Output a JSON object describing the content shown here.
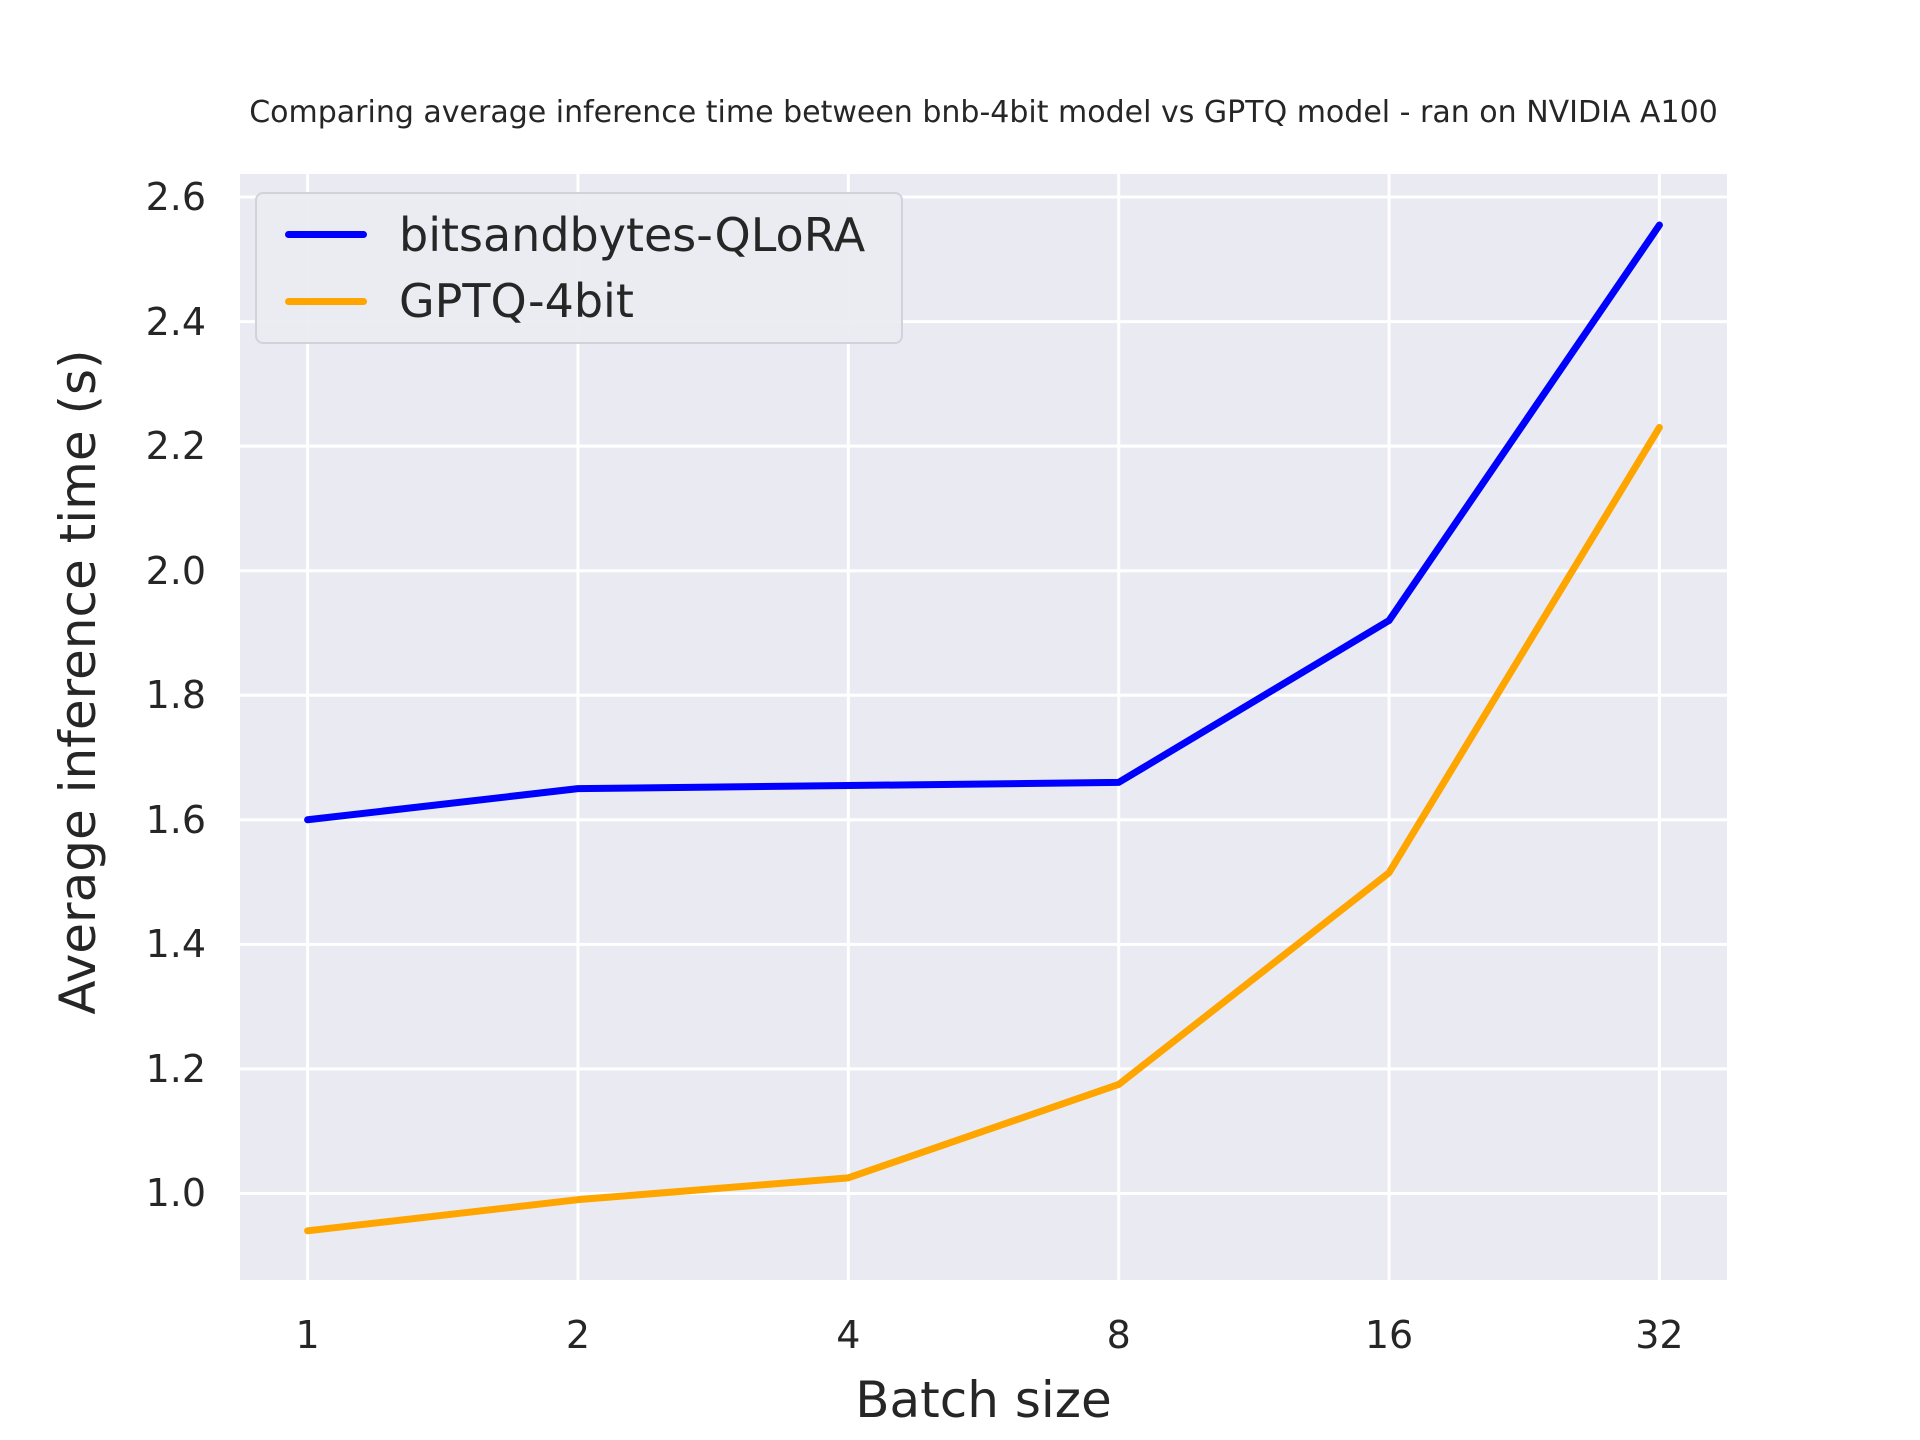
{
  "chart_data": {
    "type": "line",
    "title": "Comparing average inference time between bnb-4bit model vs GPTQ model - ran on NVIDIA A100",
    "xlabel": "Batch size",
    "ylabel": "Average inference time (s)",
    "categories": [
      "1",
      "2",
      "4",
      "8",
      "16",
      "32"
    ],
    "x_scale": "categorical-log2-spacing",
    "series": [
      {
        "name": "bitsandbytes-QLoRA",
        "color": "#0000ff",
        "values": [
          1.6,
          1.65,
          1.655,
          1.66,
          1.92,
          2.555
        ]
      },
      {
        "name": "GPTQ-4bit",
        "color": "#ffa500",
        "values": [
          0.94,
          0.99,
          1.025,
          1.175,
          1.515,
          2.23
        ]
      }
    ],
    "y_ticks": [
      1.0,
      1.2,
      1.4,
      1.6,
      1.8,
      2.0,
      2.2,
      2.4,
      2.6
    ],
    "ylim": [
      0.861,
      2.637
    ],
    "grid": true,
    "legend_position": "upper-left",
    "plot_background": "#eaeaf2",
    "grid_color": "#ffffff",
    "text_color": "#262626"
  }
}
